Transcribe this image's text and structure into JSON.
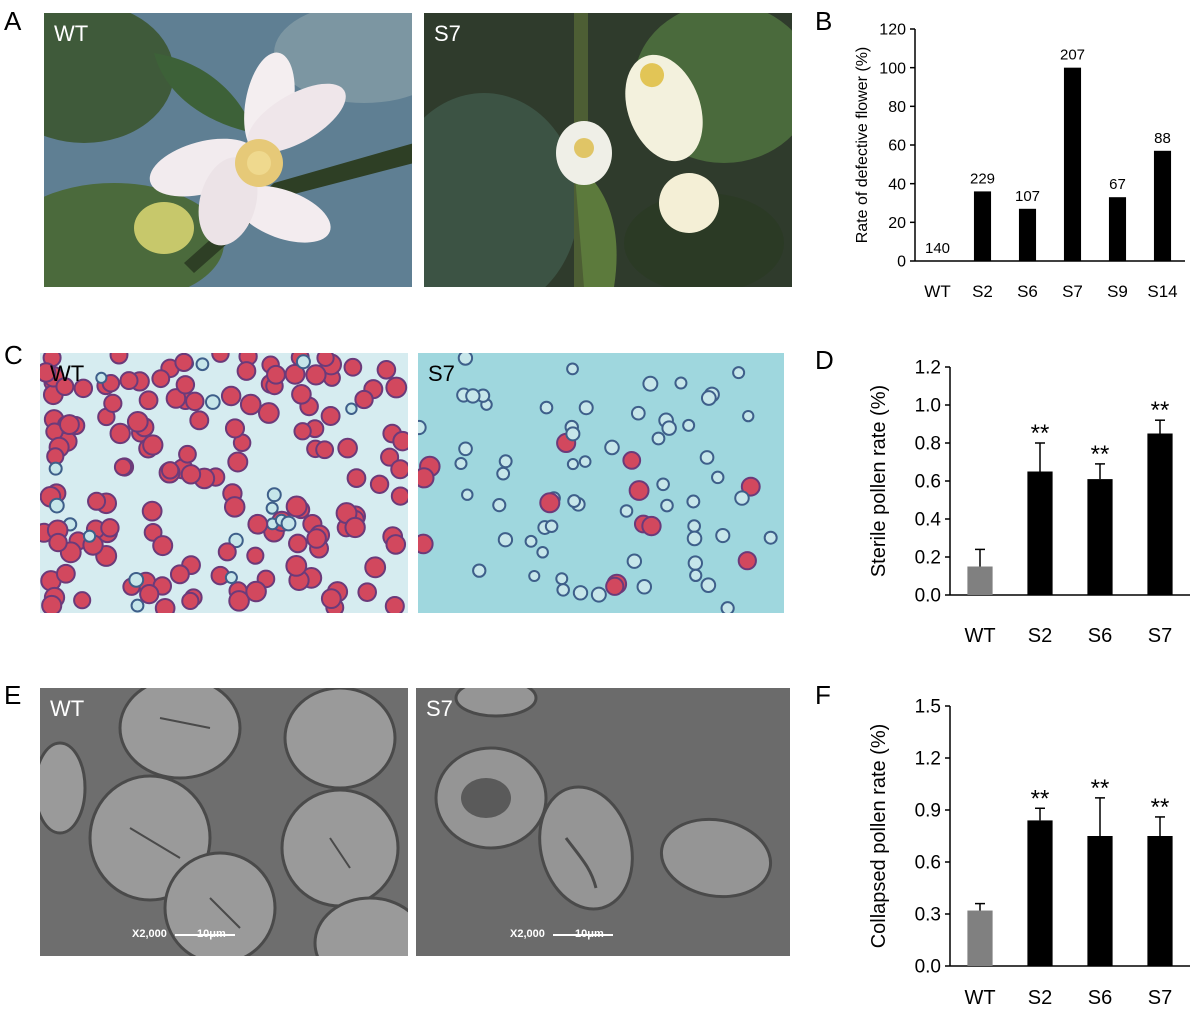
{
  "panels": {
    "A": {
      "label": "A",
      "left_tag": "WT",
      "right_tag": "S7"
    },
    "B": {
      "label": "B"
    },
    "C": {
      "label": "C",
      "left_tag": "WT",
      "right_tag": "S7"
    },
    "D": {
      "label": "D"
    },
    "E": {
      "label": "E",
      "left_tag": "WT",
      "right_tag": "S7",
      "scale_mag": "X2,000",
      "scale_len": "10μm"
    },
    "F": {
      "label": "F"
    }
  },
  "chart_data": [
    {
      "panel": "B",
      "type": "bar",
      "categories": [
        "WT",
        "S2",
        "S6",
        "S7",
        "S9",
        "S14"
      ],
      "values": [
        0,
        36,
        27,
        100,
        33,
        57
      ],
      "data_labels": [
        "140",
        "229",
        "107",
        "207",
        "67",
        "88"
      ],
      "ylabel": "Rate of defective flower (%)",
      "ylim": [
        0,
        120
      ],
      "yticks": [
        "0",
        "20",
        "40",
        "60",
        "80",
        "100",
        "120"
      ],
      "colors": [
        "#000000",
        "#000000",
        "#000000",
        "#000000",
        "#000000",
        "#000000"
      ],
      "grid": false
    },
    {
      "panel": "D",
      "type": "bar",
      "categories": [
        "WT",
        "S2",
        "S6",
        "S7"
      ],
      "values": [
        0.15,
        0.65,
        0.61,
        0.85
      ],
      "errors": [
        0.09,
        0.15,
        0.08,
        0.07
      ],
      "significance": [
        "",
        "**",
        "**",
        "**"
      ],
      "ylabel": "Sterile pollen rate (%)",
      "ylim": [
        0,
        1.2
      ],
      "yticks": [
        "0.0",
        "0.2",
        "0.4",
        "0.6",
        "0.8",
        "1.0",
        "1.2"
      ],
      "colors": [
        "#808080",
        "#000000",
        "#000000",
        "#000000"
      ],
      "grid": false
    },
    {
      "panel": "F",
      "type": "bar",
      "categories": [
        "WT",
        "S2",
        "S6",
        "S7"
      ],
      "values": [
        0.32,
        0.84,
        0.75,
        0.75
      ],
      "errors": [
        0.04,
        0.07,
        0.22,
        0.11
      ],
      "significance": [
        "",
        "**",
        "**",
        "**"
      ],
      "ylabel": "Collapsed pollen rate (%)",
      "ylim": [
        0,
        1.5
      ],
      "yticks": [
        "0.0",
        "0.3",
        "0.6",
        "0.9",
        "1.2",
        "1.5"
      ],
      "colors": [
        "#808080",
        "#000000",
        "#000000",
        "#000000"
      ],
      "grid": false
    }
  ]
}
